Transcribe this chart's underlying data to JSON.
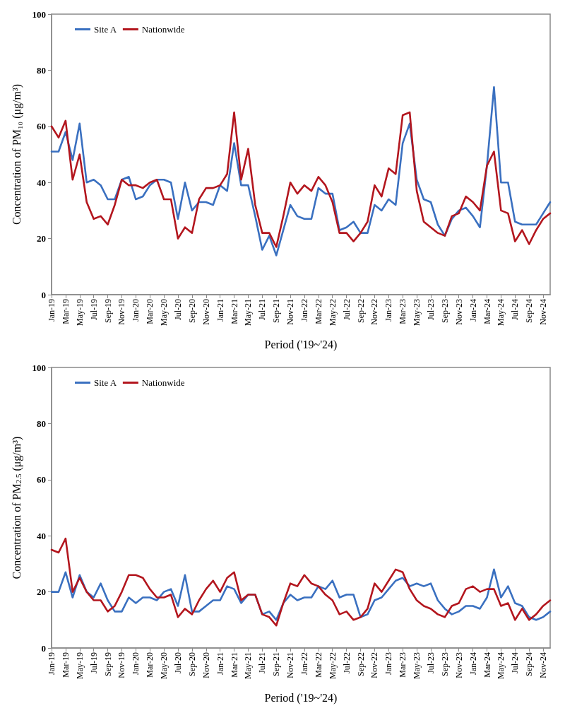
{
  "chart_data": [
    {
      "type": "line",
      "xlabel": "Period ('19~'24)",
      "ylabel": "Concentration of PM₁₀ (μg/m³)",
      "categories": [
        "Jan-19",
        null,
        "Mar-19",
        null,
        "May-19",
        null,
        "Jul-19",
        null,
        "Sep-19",
        null,
        "Nov-19",
        null,
        "Jan-20",
        null,
        "Mar-20",
        null,
        "May-20",
        null,
        "Jul-20",
        null,
        "Sep-20",
        null,
        "Nov-20",
        null,
        "Jan-21",
        null,
        "Mar-21",
        null,
        "May-21",
        null,
        "Jul-21",
        null,
        "Sep-21",
        null,
        "Nov-21",
        null,
        "Jan-22",
        null,
        "Mar-22",
        null,
        "May-22",
        null,
        "Jul-22",
        null,
        "Sep-22",
        null,
        "Nov-22",
        null,
        "Jan-23",
        null,
        "Mar-23",
        null,
        "May-23",
        null,
        "Jul-23",
        null,
        "Sep-23",
        null,
        "Nov-23",
        null,
        "Jan-24",
        null,
        "Mar-24",
        null,
        "May-24",
        null,
        "Jul-24",
        null,
        "Sep-24",
        null,
        "Nov-24",
        null
      ],
      "series": [
        {
          "name": "Site A",
          "color": "#3a70c0",
          "values": [
            51,
            51,
            58,
            48,
            61,
            40,
            41,
            39,
            34,
            34,
            41,
            42,
            34,
            35,
            39,
            41,
            41,
            40,
            27,
            40,
            30,
            33,
            33,
            32,
            39,
            37,
            54,
            39,
            39,
            28,
            16,
            21,
            14,
            23,
            32,
            28,
            27,
            27,
            38,
            36,
            36,
            23,
            24,
            26,
            22,
            22,
            32,
            30,
            34,
            32,
            54,
            61,
            41,
            34,
            33,
            25,
            21,
            27,
            30,
            31,
            28,
            24,
            46,
            74,
            40,
            40,
            26,
            25,
            25,
            25,
            29,
            33
          ]
        },
        {
          "name": "Nationwide",
          "color": "#b3161e",
          "values": [
            60,
            56,
            62,
            41,
            50,
            33,
            27,
            28,
            25,
            32,
            41,
            39,
            39,
            38,
            40,
            41,
            34,
            34,
            20,
            24,
            22,
            34,
            38,
            38,
            39,
            43,
            65,
            41,
            52,
            32,
            22,
            22,
            17,
            28,
            40,
            36,
            39,
            37,
            42,
            39,
            33,
            22,
            22,
            19,
            22,
            26,
            39,
            35,
            45,
            43,
            64,
            65,
            37,
            26,
            24,
            22,
            21,
            28,
            29,
            35,
            33,
            30,
            46,
            51,
            30,
            29,
            19,
            23,
            18,
            23,
            27,
            29
          ]
        }
      ],
      "ylim": [
        0,
        100
      ],
      "yticks": [
        0,
        20,
        40,
        60,
        80,
        100
      ],
      "grid": false,
      "legend": "top left"
    },
    {
      "type": "line",
      "xlabel": "Period ('19~'24)",
      "ylabel": "Concentration of PM$_{2.5}$ (μg/m³)",
      "categories": [
        "Jan-19",
        null,
        "Mar-19",
        null,
        "May-19",
        null,
        "Jul-19",
        null,
        "Sep-19",
        null,
        "Nov-19",
        null,
        "Jan-20",
        null,
        "Mar-20",
        null,
        "May-20",
        null,
        "Jul-20",
        null,
        "Sep-20",
        null,
        "Nov-20",
        null,
        "Jan-21",
        null,
        "Mar-21",
        null,
        "May-21",
        null,
        "Jul-21",
        null,
        "Sep-21",
        null,
        "Nov-21",
        null,
        "Jan-22",
        null,
        "Mar-22",
        null,
        "May-22",
        null,
        "Jul-22",
        null,
        "Sep-22",
        null,
        "Nov-22",
        null,
        "Jan-23",
        null,
        "Mar-23",
        null,
        "May-23",
        null,
        "Jul-23",
        null,
        "Sep-23",
        null,
        "Nov-23",
        null,
        "Jan-24",
        null,
        "Mar-24",
        null,
        "May-24",
        null,
        "Jul-24",
        null,
        "Sep-24",
        null,
        "Nov-24",
        null
      ],
      "series": [
        {
          "name": "Site A",
          "color": "#3a70c0",
          "values": [
            20,
            20,
            27,
            18,
            26,
            20,
            18,
            23,
            17,
            13,
            13,
            18,
            16,
            18,
            18,
            17,
            20,
            21,
            15,
            26,
            13,
            13,
            15,
            17,
            17,
            22,
            21,
            16,
            19,
            19,
            12,
            13,
            10,
            16,
            19,
            17,
            18,
            18,
            22,
            21,
            24,
            18,
            19,
            19,
            11,
            12,
            17,
            18,
            21,
            24,
            25,
            22,
            23,
            22,
            23,
            17,
            14,
            12,
            13,
            15,
            15,
            14,
            18,
            28,
            18,
            22,
            16,
            15,
            11,
            10,
            11,
            13
          ]
        },
        {
          "name": "Nationwide",
          "color": "#b3161e",
          "values": [
            35,
            34,
            39,
            20,
            25,
            20,
            17,
            17,
            13,
            15,
            20,
            26,
            26,
            25,
            21,
            18,
            18,
            19,
            11,
            14,
            12,
            17,
            21,
            24,
            20,
            25,
            27,
            17,
            19,
            19,
            12,
            11,
            8,
            16,
            23,
            22,
            26,
            23,
            22,
            19,
            17,
            12,
            13,
            10,
            11,
            14,
            23,
            20,
            24,
            28,
            27,
            21,
            17,
            15,
            14,
            12,
            11,
            15,
            16,
            21,
            22,
            20,
            21,
            21,
            15,
            16,
            10,
            14,
            10,
            12,
            15,
            17
          ]
        }
      ],
      "ylim": [
        0,
        100
      ],
      "yticks": [
        0,
        20,
        40,
        60,
        80,
        100
      ],
      "grid": false,
      "legend": "top left"
    }
  ]
}
